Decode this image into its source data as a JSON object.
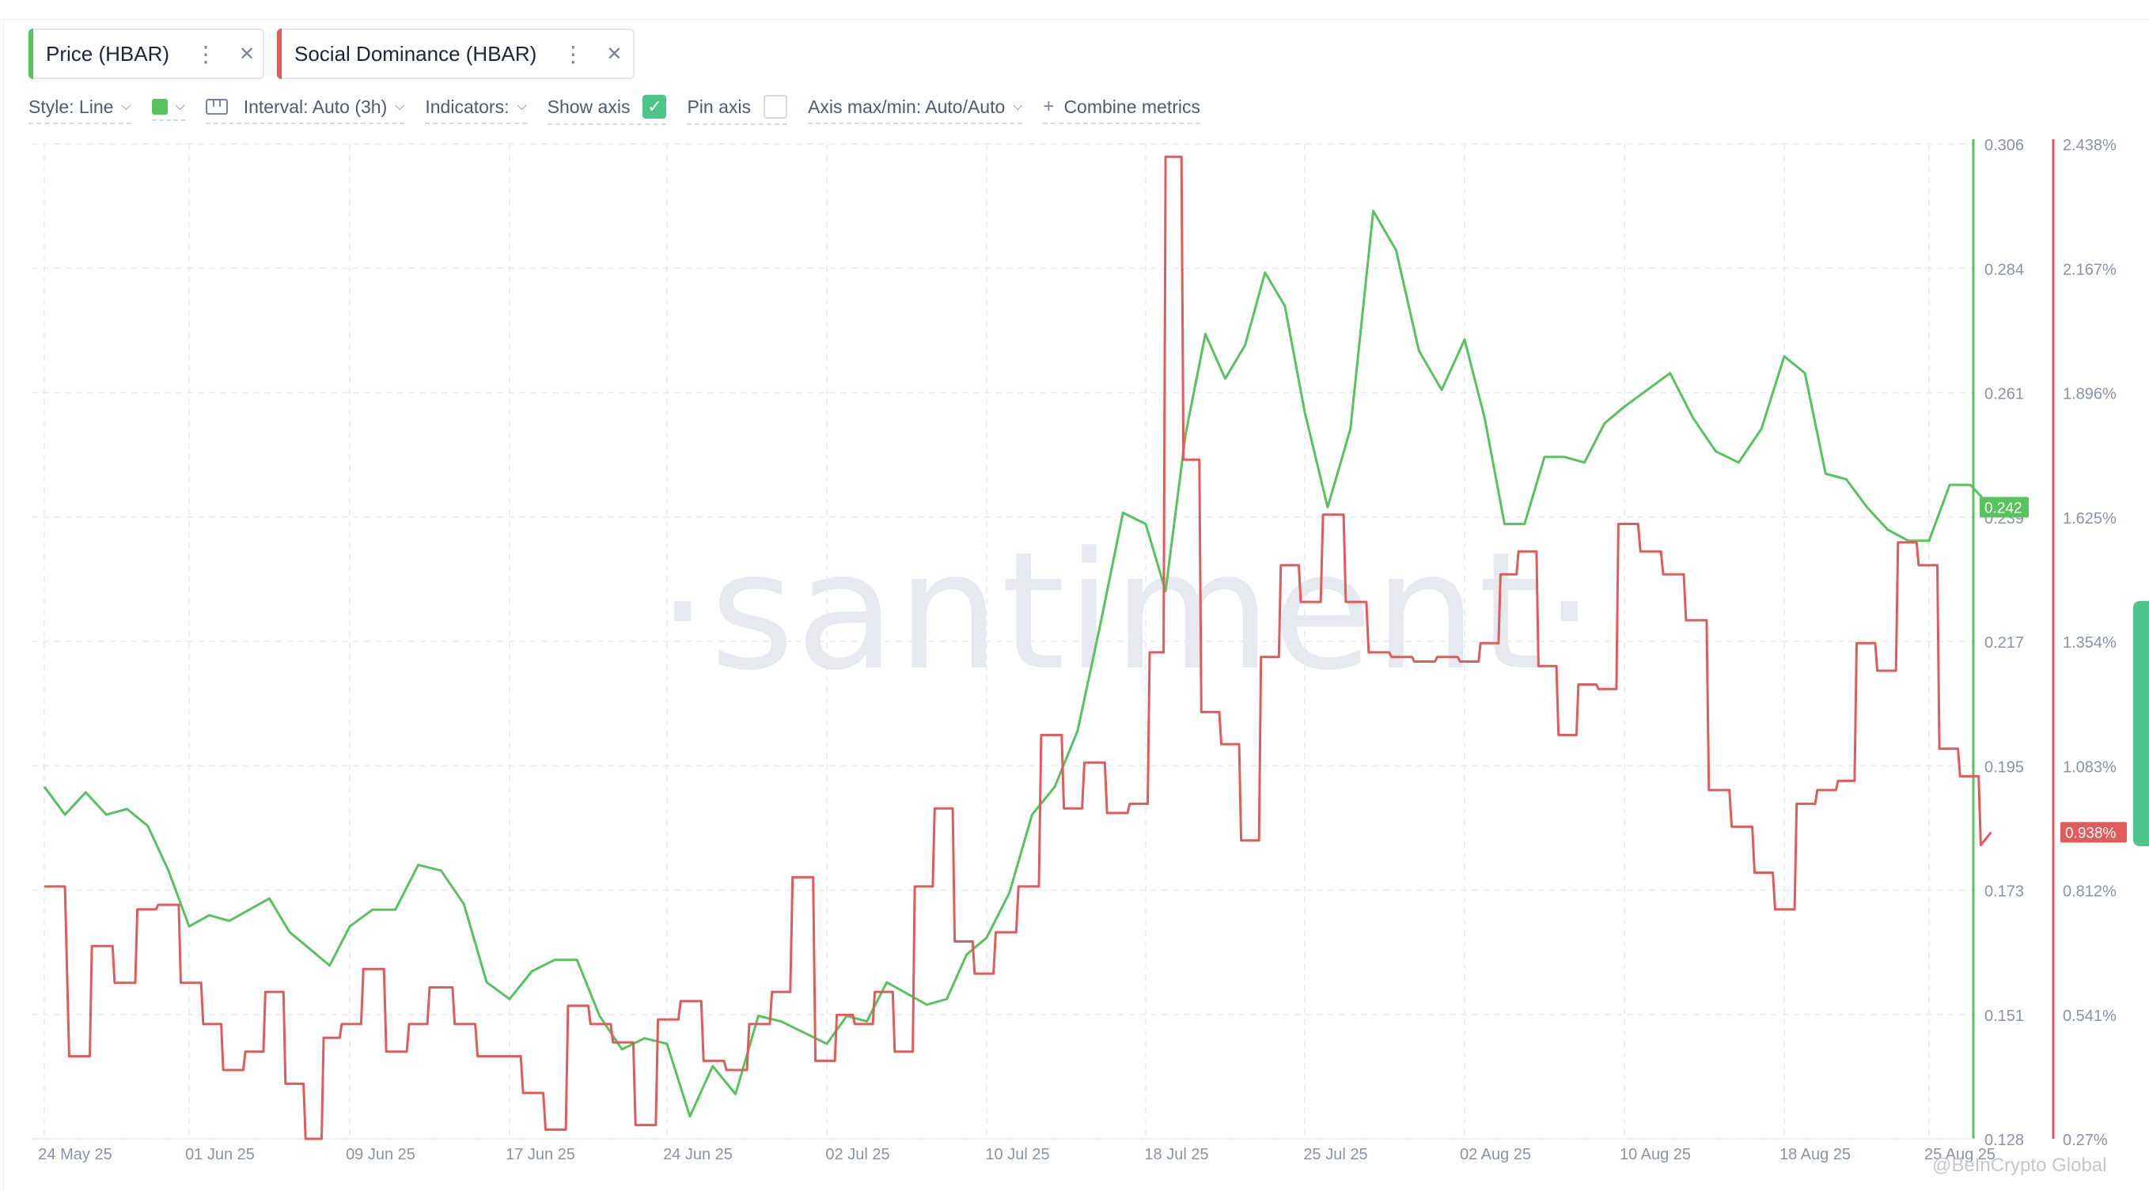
{
  "metrics": [
    {
      "label": "Price (HBAR)",
      "color": "#57c35d"
    },
    {
      "label": "Social Dominance (HBAR)",
      "color": "#e35a5a"
    }
  ],
  "toolbar": {
    "style_label": "Style: Line",
    "interval_label": "Interval: Auto (3h)",
    "indicators_label": "Indicators:",
    "show_axis_label": "Show axis",
    "show_axis_checked": true,
    "pin_axis_label": "Pin axis",
    "pin_axis_checked": false,
    "axis_minmax_label": "Axis max/min: Auto/Auto",
    "combine_label": "Combine metrics"
  },
  "watermark": "·santiment·",
  "credit": "@BeInCrypto Global",
  "chart_data": {
    "type": "line",
    "x_ticks": [
      "24 May 25",
      "01 Jun 25",
      "09 Jun 25",
      "17 Jun 25",
      "24 Jun 25",
      "02 Jul 25",
      "10 Jul 25",
      "18 Jul 25",
      "25 Jul 25",
      "02 Aug 25",
      "10 Aug 25",
      "18 Aug 25",
      "25 Aug 25"
    ],
    "x_range": [
      "24 May 25",
      "25 Aug 25"
    ],
    "y_left": {
      "ticks": [
        "0.306",
        "0.284",
        "0.261",
        "0.239",
        "0.217",
        "0.195",
        "0.173",
        "0.151",
        "0.128"
      ],
      "min": 0.128,
      "max": 0.306
    },
    "y_right": {
      "ticks": [
        "2.438%",
        "2.167%",
        "1.896%",
        "1.625%",
        "1.354%",
        "1.083%",
        "0.812%",
        "0.541%",
        "0.27%"
      ],
      "min": 0.27,
      "max": 2.438
    },
    "grid": true,
    "series": [
      {
        "name": "Price (HBAR)",
        "color": "#57c35d",
        "axis": "left",
        "last_value_label": "0.242",
        "points": [
          [
            0,
            0.191
          ],
          [
            1,
            0.186
          ],
          [
            2,
            0.19
          ],
          [
            3,
            0.186
          ],
          [
            4,
            0.187
          ],
          [
            5,
            0.184
          ],
          [
            6,
            0.176
          ],
          [
            7,
            0.166
          ],
          [
            8,
            0.168
          ],
          [
            9,
            0.167
          ],
          [
            10,
            0.169
          ],
          [
            11,
            0.171
          ],
          [
            12,
            0.165
          ],
          [
            13,
            0.162
          ],
          [
            14,
            0.159
          ],
          [
            15,
            0.166
          ],
          [
            16,
            0.169
          ],
          [
            17,
            0.169
          ],
          [
            18,
            0.177
          ],
          [
            19,
            0.176
          ],
          [
            20,
            0.17
          ],
          [
            21,
            0.156
          ],
          [
            22,
            0.153
          ],
          [
            23,
            0.158
          ],
          [
            24,
            0.16
          ],
          [
            25,
            0.16
          ],
          [
            26,
            0.15
          ],
          [
            27,
            0.144
          ],
          [
            28,
            0.146
          ],
          [
            29,
            0.145
          ],
          [
            30,
            0.132
          ],
          [
            31,
            0.141
          ],
          [
            32,
            0.136
          ],
          [
            33,
            0.15
          ],
          [
            34,
            0.149
          ],
          [
            35,
            0.147
          ],
          [
            36,
            0.145
          ],
          [
            37,
            0.15
          ],
          [
            38,
            0.149
          ],
          [
            39,
            0.156
          ],
          [
            40,
            0.154
          ],
          [
            41,
            0.152
          ],
          [
            42,
            0.153
          ],
          [
            43,
            0.161
          ],
          [
            44,
            0.164
          ],
          [
            45,
            0.172
          ],
          [
            46,
            0.186
          ],
          [
            47,
            0.191
          ],
          [
            48,
            0.201
          ],
          [
            49,
            0.22
          ],
          [
            50,
            0.24
          ],
          [
            51,
            0.238
          ],
          [
            52,
            0.226
          ],
          [
            53,
            0.254
          ],
          [
            54,
            0.272
          ],
          [
            55,
            0.264
          ],
          [
            56,
            0.27
          ],
          [
            57,
            0.283
          ],
          [
            58,
            0.277
          ],
          [
            59,
            0.258
          ],
          [
            60,
            0.241
          ],
          [
            61,
            0.255
          ],
          [
            62,
            0.294
          ],
          [
            63,
            0.287
          ],
          [
            64,
            0.269
          ],
          [
            65,
            0.262
          ],
          [
            66,
            0.271
          ],
          [
            67,
            0.257
          ],
          [
            68,
            0.238
          ],
          [
            69,
            0.238
          ],
          [
            70,
            0.25
          ],
          [
            71,
            0.25
          ],
          [
            72,
            0.249
          ],
          [
            73,
            0.256
          ],
          [
            74,
            0.259
          ],
          [
            75,
            0.262
          ],
          [
            76,
            0.265
          ],
          [
            77,
            0.257
          ],
          [
            78,
            0.251
          ],
          [
            79,
            0.249
          ],
          [
            80,
            0.255
          ],
          [
            81,
            0.268
          ],
          [
            82,
            0.265
          ],
          [
            83,
            0.247
          ],
          [
            84,
            0.246
          ],
          [
            85,
            0.241
          ],
          [
            86,
            0.237
          ],
          [
            87,
            0.235
          ],
          [
            88,
            0.235
          ],
          [
            89,
            0.245
          ],
          [
            90,
            0.245
          ],
          [
            91,
            0.241
          ]
        ]
      },
      {
        "name": "Social Dominance (HBAR)",
        "color": "#e35a5a",
        "axis": "right",
        "last_value_label": "0.938%",
        "points": [
          [
            0,
            0.82
          ],
          [
            1,
            0.82
          ],
          [
            1.2,
            0.45
          ],
          [
            2.2,
            0.45
          ],
          [
            2.3,
            0.69
          ],
          [
            3.3,
            0.69
          ],
          [
            3.4,
            0.61
          ],
          [
            4.4,
            0.61
          ],
          [
            4.5,
            0.77
          ],
          [
            5.4,
            0.77
          ],
          [
            5.5,
            0.78
          ],
          [
            6.5,
            0.78
          ],
          [
            6.6,
            0.61
          ],
          [
            7.6,
            0.61
          ],
          [
            7.7,
            0.52
          ],
          [
            8.6,
            0.52
          ],
          [
            8.7,
            0.42
          ],
          [
            9.7,
            0.42
          ],
          [
            9.8,
            0.46
          ],
          [
            10.7,
            0.46
          ],
          [
            10.8,
            0.59
          ],
          [
            11.7,
            0.59
          ],
          [
            11.8,
            0.39
          ],
          [
            12.7,
            0.39
          ],
          [
            12.8,
            0.27
          ],
          [
            13.6,
            0.27
          ],
          [
            13.7,
            0.49
          ],
          [
            14.5,
            0.49
          ],
          [
            14.6,
            0.52
          ],
          [
            15.5,
            0.52
          ],
          [
            15.6,
            0.64
          ],
          [
            16.5,
            0.64
          ],
          [
            16.6,
            0.46
          ],
          [
            17.5,
            0.46
          ],
          [
            17.6,
            0.52
          ],
          [
            18.4,
            0.52
          ],
          [
            18.5,
            0.6
          ],
          [
            19.5,
            0.6
          ],
          [
            19.6,
            0.52
          ],
          [
            20.5,
            0.52
          ],
          [
            20.6,
            0.45
          ],
          [
            21.5,
            0.45
          ],
          [
            21.6,
            0.45
          ],
          [
            22.5,
            0.45
          ],
          [
            22.6,
            0.37
          ],
          [
            23.5,
            0.37
          ],
          [
            23.6,
            0.29
          ],
          [
            24.5,
            0.29
          ],
          [
            24.6,
            0.56
          ],
          [
            25.5,
            0.56
          ],
          [
            25.6,
            0.52
          ],
          [
            26.5,
            0.52
          ],
          [
            26.6,
            0.48
          ],
          [
            27.5,
            0.48
          ],
          [
            27.6,
            0.3
          ],
          [
            28.5,
            0.3
          ],
          [
            28.6,
            0.53
          ],
          [
            29.5,
            0.53
          ],
          [
            29.6,
            0.57
          ],
          [
            30.5,
            0.57
          ],
          [
            30.6,
            0.44
          ],
          [
            31.5,
            0.44
          ],
          [
            31.6,
            0.42
          ],
          [
            32.5,
            0.42
          ],
          [
            32.6,
            0.52
          ],
          [
            33.5,
            0.52
          ],
          [
            33.6,
            0.59
          ],
          [
            34.4,
            0.59
          ],
          [
            34.5,
            0.84
          ],
          [
            35.4,
            0.84
          ],
          [
            35.5,
            0.44
          ],
          [
            36.4,
            0.44
          ],
          [
            36.5,
            0.54
          ],
          [
            37.3,
            0.54
          ],
          [
            37.4,
            0.52
          ],
          [
            38.3,
            0.52
          ],
          [
            38.4,
            0.59
          ],
          [
            39.3,
            0.59
          ],
          [
            39.4,
            0.46
          ],
          [
            40.3,
            0.46
          ],
          [
            40.4,
            0.82
          ],
          [
            41.3,
            0.82
          ],
          [
            41.4,
            0.99
          ],
          [
            42.3,
            0.99
          ],
          [
            42.4,
            0.7
          ],
          [
            43.3,
            0.7
          ],
          [
            43.4,
            0.63
          ],
          [
            44.3,
            0.63
          ],
          [
            44.4,
            0.72
          ],
          [
            45.3,
            0.72
          ],
          [
            45.4,
            0.82
          ],
          [
            46.3,
            0.82
          ],
          [
            46.4,
            1.15
          ],
          [
            47.3,
            1.15
          ],
          [
            47.4,
            0.99
          ],
          [
            48.2,
            0.99
          ],
          [
            48.3,
            1.09
          ],
          [
            49.2,
            1.09
          ],
          [
            49.3,
            0.98
          ],
          [
            50.2,
            0.98
          ],
          [
            50.3,
            1.0
          ],
          [
            51.1,
            1.0
          ],
          [
            51.2,
            1.33
          ],
          [
            51.9,
            1.33
          ],
          [
            52.0,
            2.41
          ],
          [
            52.8,
            2.41
          ],
          [
            52.9,
            1.75
          ],
          [
            53.7,
            1.75
          ],
          [
            53.8,
            1.2
          ],
          [
            54.7,
            1.2
          ],
          [
            54.8,
            1.13
          ],
          [
            55.7,
            1.13
          ],
          [
            55.8,
            0.92
          ],
          [
            56.7,
            0.92
          ],
          [
            56.8,
            1.32
          ],
          [
            57.7,
            1.32
          ],
          [
            57.8,
            1.52
          ],
          [
            58.7,
            1.52
          ],
          [
            58.8,
            1.44
          ],
          [
            59.7,
            1.44
          ],
          [
            59.8,
            1.63
          ],
          [
            60.7,
            1.63
          ],
          [
            60.8,
            1.44
          ],
          [
            61.7,
            1.44
          ],
          [
            61.8,
            1.33
          ],
          [
            62.7,
            1.33
          ],
          [
            62.8,
            1.32
          ],
          [
            63.7,
            1.32
          ],
          [
            63.8,
            1.31
          ],
          [
            64.7,
            1.31
          ],
          [
            64.8,
            1.32
          ],
          [
            65.7,
            1.32
          ],
          [
            65.8,
            1.31
          ],
          [
            66.7,
            1.31
          ],
          [
            66.8,
            1.35
          ],
          [
            67.7,
            1.35
          ],
          [
            67.8,
            1.5
          ],
          [
            68.6,
            1.5
          ],
          [
            68.7,
            1.55
          ],
          [
            69.6,
            1.55
          ],
          [
            69.7,
            1.3
          ],
          [
            70.6,
            1.3
          ],
          [
            70.7,
            1.15
          ],
          [
            71.6,
            1.15
          ],
          [
            71.7,
            1.26
          ],
          [
            72.6,
            1.26
          ],
          [
            72.7,
            1.25
          ],
          [
            73.6,
            1.25
          ],
          [
            73.7,
            1.61
          ],
          [
            74.6,
            1.61
          ],
          [
            74.7,
            1.55
          ],
          [
            75.6,
            1.55
          ],
          [
            75.7,
            1.5
          ],
          [
            76.6,
            1.5
          ],
          [
            76.7,
            1.4
          ],
          [
            77.6,
            1.4
          ],
          [
            77.7,
            1.03
          ],
          [
            78.6,
            1.03
          ],
          [
            78.7,
            0.95
          ],
          [
            79.6,
            0.95
          ],
          [
            79.7,
            0.85
          ],
          [
            80.5,
            0.85
          ],
          [
            80.6,
            0.77
          ],
          [
            81.5,
            0.77
          ],
          [
            81.6,
            1.0
          ],
          [
            82.5,
            1.0
          ],
          [
            82.6,
            1.03
          ],
          [
            83.5,
            1.03
          ],
          [
            83.6,
            1.05
          ],
          [
            84.4,
            1.05
          ],
          [
            84.5,
            1.35
          ],
          [
            85.4,
            1.35
          ],
          [
            85.5,
            1.29
          ],
          [
            86.4,
            1.29
          ],
          [
            86.5,
            1.57
          ],
          [
            87.4,
            1.57
          ],
          [
            87.5,
            1.52
          ],
          [
            88.4,
            1.52
          ],
          [
            88.5,
            1.12
          ],
          [
            89.4,
            1.12
          ],
          [
            89.5,
            1.06
          ],
          [
            90.4,
            1.06
          ],
          [
            90.5,
            0.91
          ],
          [
            91,
            0.938
          ]
        ]
      }
    ]
  }
}
